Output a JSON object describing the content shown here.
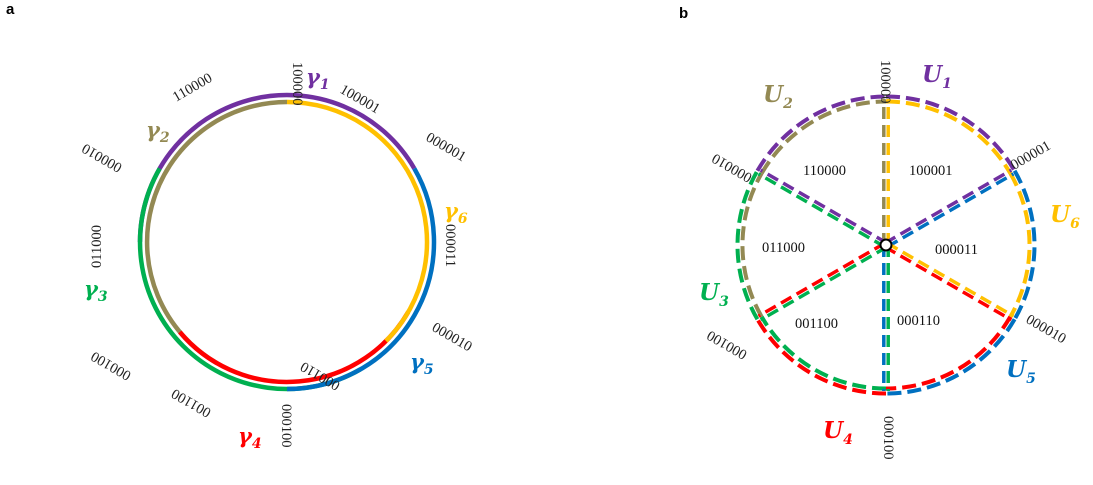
{
  "colors": {
    "purple": "#7030a0",
    "tan": "#938953",
    "green": "#00b050",
    "red": "#ff0000",
    "blue": "#0070c0",
    "yellow": "#ffc000"
  },
  "panel_a": {
    "label": "a",
    "boundary_codes": [
      "100000",
      "000001",
      "000011",
      "000010",
      "000110",
      "000100",
      "001100",
      "000100",
      "011000",
      "000010",
      "110000",
      "100001"
    ],
    "gammas": [
      {
        "sym": "γ",
        "sub": "1",
        "color": "purple"
      },
      {
        "sym": "γ",
        "sub": "2",
        "color": "tan"
      },
      {
        "sym": "γ",
        "sub": "3",
        "color": "green"
      },
      {
        "sym": "γ",
        "sub": "4",
        "color": "red"
      },
      {
        "sym": "γ",
        "sub": "5",
        "color": "blue"
      },
      {
        "sym": "γ",
        "sub": "6",
        "color": "yellow"
      }
    ]
  },
  "panel_b": {
    "label": "b",
    "radial_codes": [
      "100000",
      "000001",
      "000010",
      "000100",
      "000100",
      "000010"
    ],
    "region_codes": [
      "100001",
      "000011",
      "000110",
      "001100",
      "011000",
      "110000"
    ],
    "sets": [
      {
        "sym": "U",
        "sub": "1",
        "color": "purple"
      },
      {
        "sym": "U",
        "sub": "2",
        "color": "tan"
      },
      {
        "sym": "U",
        "sub": "3",
        "color": "green"
      },
      {
        "sym": "U",
        "sub": "4",
        "color": "red"
      },
      {
        "sym": "U",
        "sub": "5",
        "color": "blue"
      },
      {
        "sym": "U",
        "sub": "6",
        "color": "yellow"
      }
    ]
  }
}
